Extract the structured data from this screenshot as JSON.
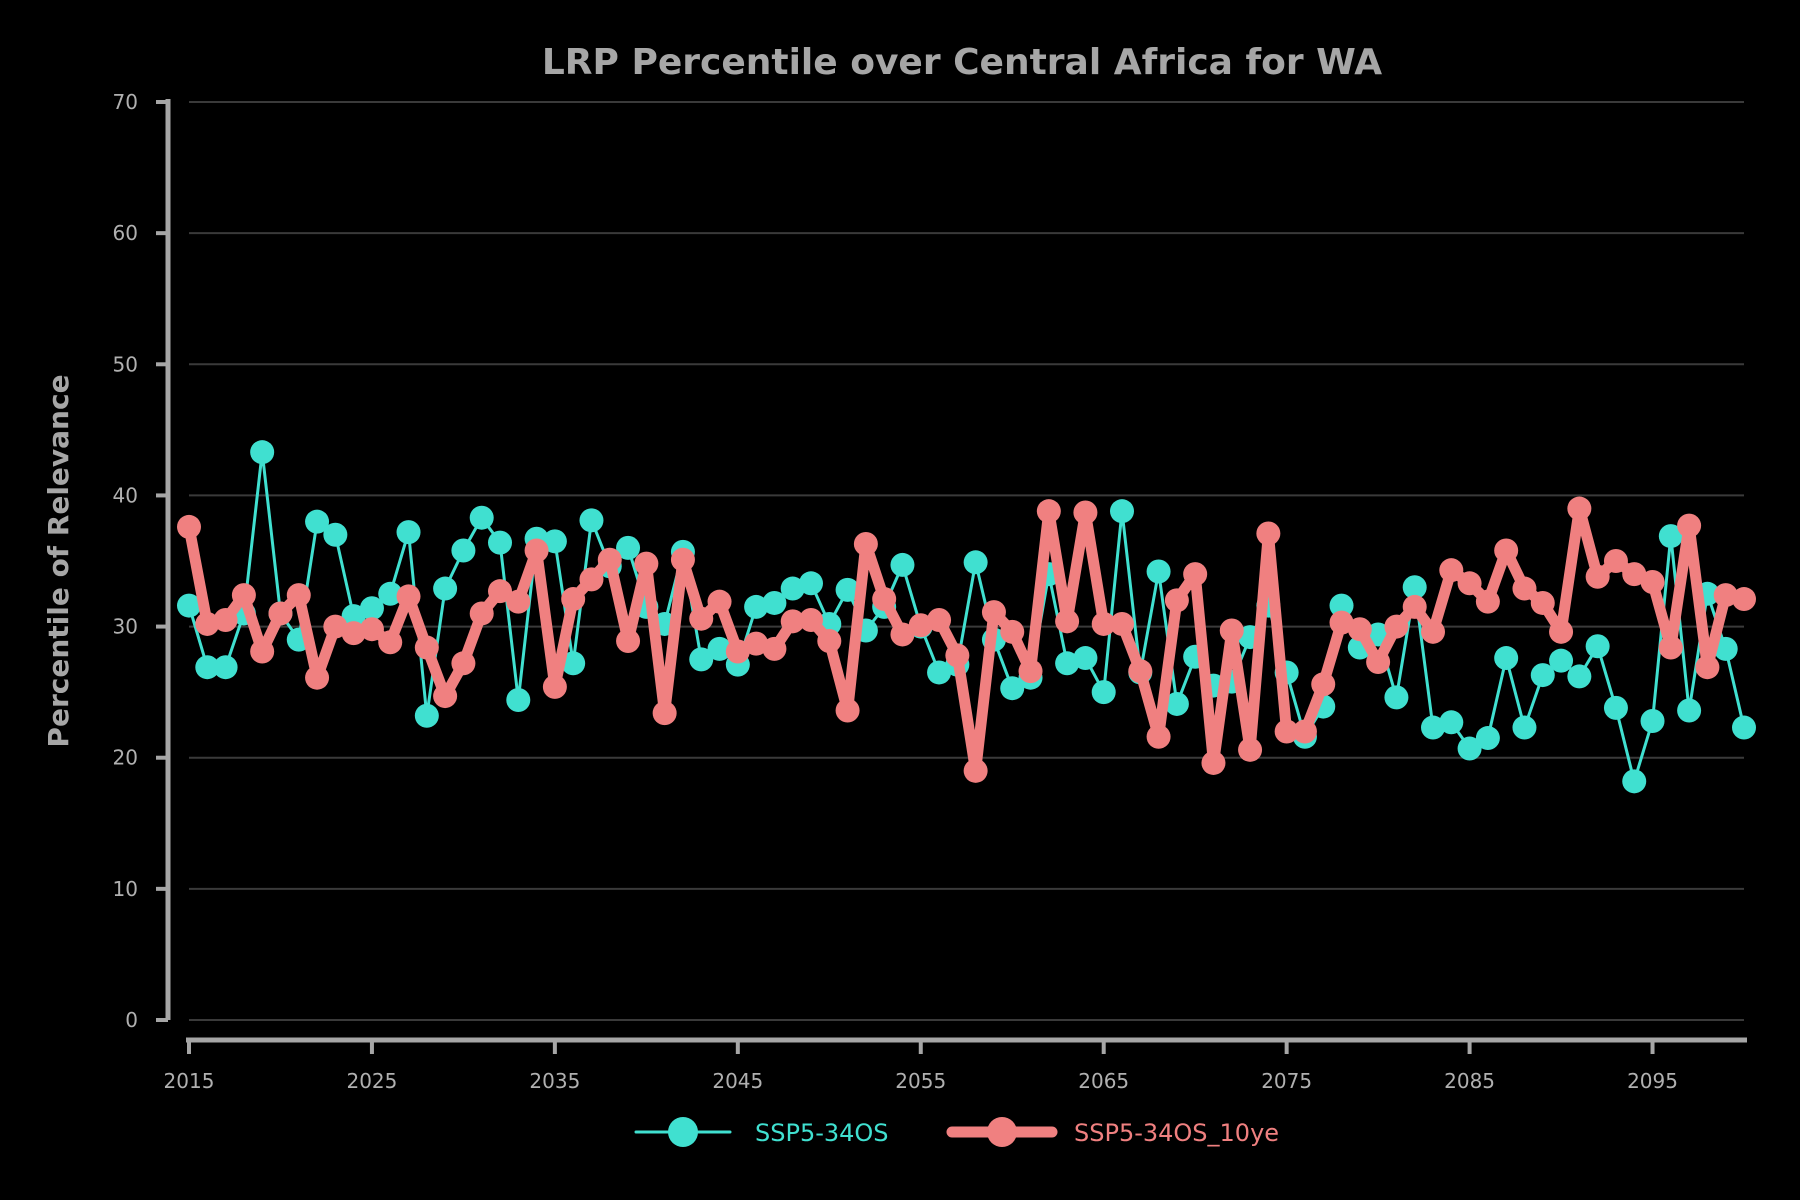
{
  "chart_data": {
    "type": "line",
    "title": "LRP Percentile over Central Africa for WA",
    "xlabel": "",
    "ylabel": "Percentile of Relevance",
    "xlim": [
      2015,
      2100
    ],
    "ylim": [
      0,
      70
    ],
    "x_ticks": [
      2015,
      2025,
      2035,
      2045,
      2055,
      2065,
      2075,
      2085,
      2095
    ],
    "y_ticks": [
      0,
      10,
      20,
      30,
      40,
      50,
      60,
      70
    ],
    "grid": "horizontal",
    "legend_position": "bottom",
    "x": [
      2015,
      2016,
      2017,
      2018,
      2019,
      2020,
      2021,
      2022,
      2023,
      2024,
      2025,
      2026,
      2027,
      2028,
      2029,
      2030,
      2031,
      2032,
      2033,
      2034,
      2035,
      2036,
      2037,
      2038,
      2039,
      2040,
      2041,
      2042,
      2043,
      2044,
      2045,
      2046,
      2047,
      2048,
      2049,
      2050,
      2051,
      2052,
      2053,
      2054,
      2055,
      2056,
      2057,
      2058,
      2059,
      2060,
      2061,
      2062,
      2063,
      2064,
      2065,
      2066,
      2067,
      2068,
      2069,
      2070,
      2071,
      2072,
      2073,
      2074,
      2075,
      2076,
      2077,
      2078,
      2079,
      2080,
      2081,
      2082,
      2083,
      2084,
      2085,
      2086,
      2087,
      2088,
      2089,
      2090,
      2091,
      2092,
      2093,
      2094,
      2095,
      2096,
      2097,
      2098,
      2099,
      2100
    ],
    "series": [
      {
        "name": "SSP5-34OS",
        "color": "#40e0d0",
        "line_width": 3,
        "marker_radius": 12,
        "values": [
          31.6,
          26.9,
          26.9,
          31.0,
          43.3,
          31.0,
          29.0,
          38.0,
          37.0,
          30.8,
          31.4,
          32.5,
          37.2,
          23.2,
          32.9,
          35.8,
          38.3,
          36.4,
          24.4,
          36.7,
          36.5,
          27.2,
          38.1,
          34.6,
          36.0,
          31.5,
          30.2,
          35.7,
          27.5,
          28.3,
          27.1,
          31.5,
          31.8,
          32.9,
          33.3,
          30.2,
          32.8,
          29.7,
          31.5,
          34.7,
          30.0,
          26.5,
          27.1,
          34.9,
          29.0,
          25.3,
          26.1,
          34.0,
          27.2,
          27.6,
          25.0,
          38.8,
          26.5,
          34.2,
          24.1,
          27.7,
          25.5,
          25.8,
          29.2,
          31.6,
          26.5,
          21.6,
          23.9,
          31.6,
          28.4,
          29.4,
          24.6,
          33.0,
          22.3,
          22.7,
          20.7,
          21.5,
          27.6,
          22.3,
          26.3,
          27.4,
          26.2,
          28.5,
          23.8,
          18.2,
          22.8,
          36.9,
          23.6,
          32.5,
          28.3,
          22.3
        ]
      },
      {
        "name": "SSP5-34OS_10ye",
        "color": "#f08080",
        "line_width": 11,
        "marker_radius": 12,
        "values": [
          37.6,
          30.2,
          30.5,
          32.4,
          28.1,
          31.0,
          32.4,
          26.1,
          30.0,
          29.5,
          29.8,
          28.8,
          32.3,
          28.4,
          24.7,
          27.2,
          31.0,
          32.7,
          31.9,
          35.8,
          25.4,
          32.1,
          33.6,
          35.1,
          28.9,
          34.8,
          23.4,
          35.1,
          30.6,
          31.9,
          28.1,
          28.7,
          28.3,
          30.4,
          30.5,
          28.9,
          23.6,
          36.3,
          32.1,
          29.4,
          30.1,
          30.5,
          27.8,
          19.0,
          31.1,
          29.6,
          26.6,
          38.8,
          30.4,
          38.7,
          30.2,
          30.2,
          26.6,
          21.6,
          32.0,
          34.0,
          19.6,
          29.7,
          20.6,
          37.1,
          22.0,
          22.0,
          25.6,
          30.3,
          29.8,
          27.3,
          30.0,
          31.5,
          29.6,
          34.3,
          33.3,
          31.9,
          35.8,
          32.9,
          31.8,
          29.6,
          39.0,
          33.8,
          35.0,
          34.0,
          33.4,
          28.4,
          37.7,
          26.9,
          32.4,
          32.1
        ]
      }
    ]
  }
}
